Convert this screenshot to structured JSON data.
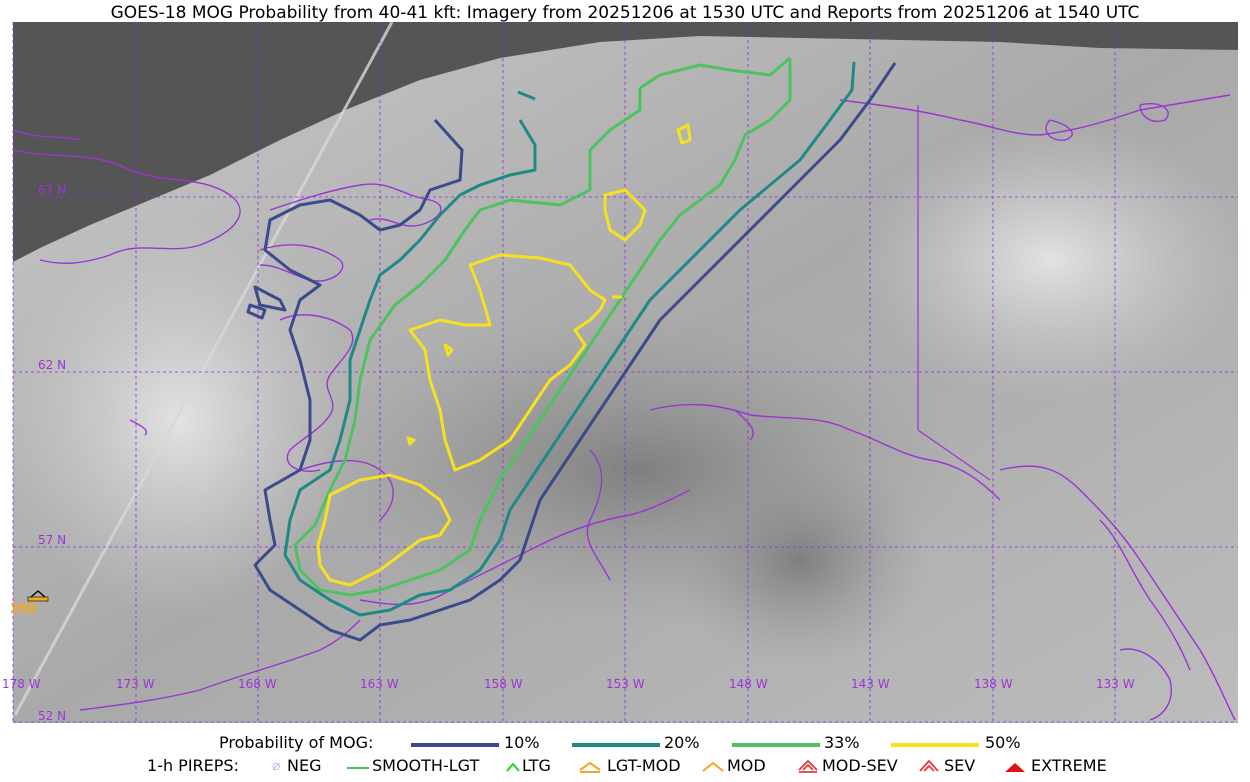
{
  "title": "GOES-18 MOG Probability from 40-41 kft: Imagery from 20251206 at 1530 UTC and Reports from 20251206 at 1540 UTC",
  "map": {
    "lat_labels": [
      "67 N",
      "62 N",
      "57 N",
      "52 N"
    ],
    "lon_labels": [
      "178 W",
      "173 W",
      "168 W",
      "163 W",
      "158 W",
      "153 W",
      "148 W",
      "143 W",
      "138 W",
      "133 W"
    ],
    "report_label": "350",
    "colors": {
      "coast": "#9a35d4",
      "grid": "#8a2be2",
      "no_data": "#555555",
      "report": "#f5a623"
    }
  },
  "legend": {
    "prob_title": "Probability of MOG:",
    "prob_items": [
      {
        "label": "10%",
        "color": "#3b4a8a"
      },
      {
        "label": "20%",
        "color": "#1f8a85"
      },
      {
        "label": "33%",
        "color": "#4cc35e"
      },
      {
        "label": "50%",
        "color": "#f7e11d"
      }
    ],
    "pirep_title": "1-h PIREPS:",
    "pirep_items": [
      {
        "label": "NEG",
        "icon": "neg-icon",
        "color": "#b9b9f0"
      },
      {
        "label": "SMOOTH-LGT",
        "icon": "smooth-lgt-icon",
        "color": "#46c846"
      },
      {
        "label": "LTG",
        "icon": "ltg-icon",
        "color": "#2ad12a"
      },
      {
        "label": "LGT-MOD",
        "icon": "lgt-mod-icon",
        "color": "#f5a623"
      },
      {
        "label": "MOD",
        "icon": "mod-icon",
        "color": "#f5a623"
      },
      {
        "label": "MOD-SEV",
        "icon": "mod-sev-icon",
        "color": "#e23b3b"
      },
      {
        "label": "SEV",
        "icon": "sev-icon",
        "color": "#e23b3b"
      },
      {
        "label": "EXTREME",
        "icon": "extreme-icon",
        "color": "#e01010"
      }
    ]
  }
}
